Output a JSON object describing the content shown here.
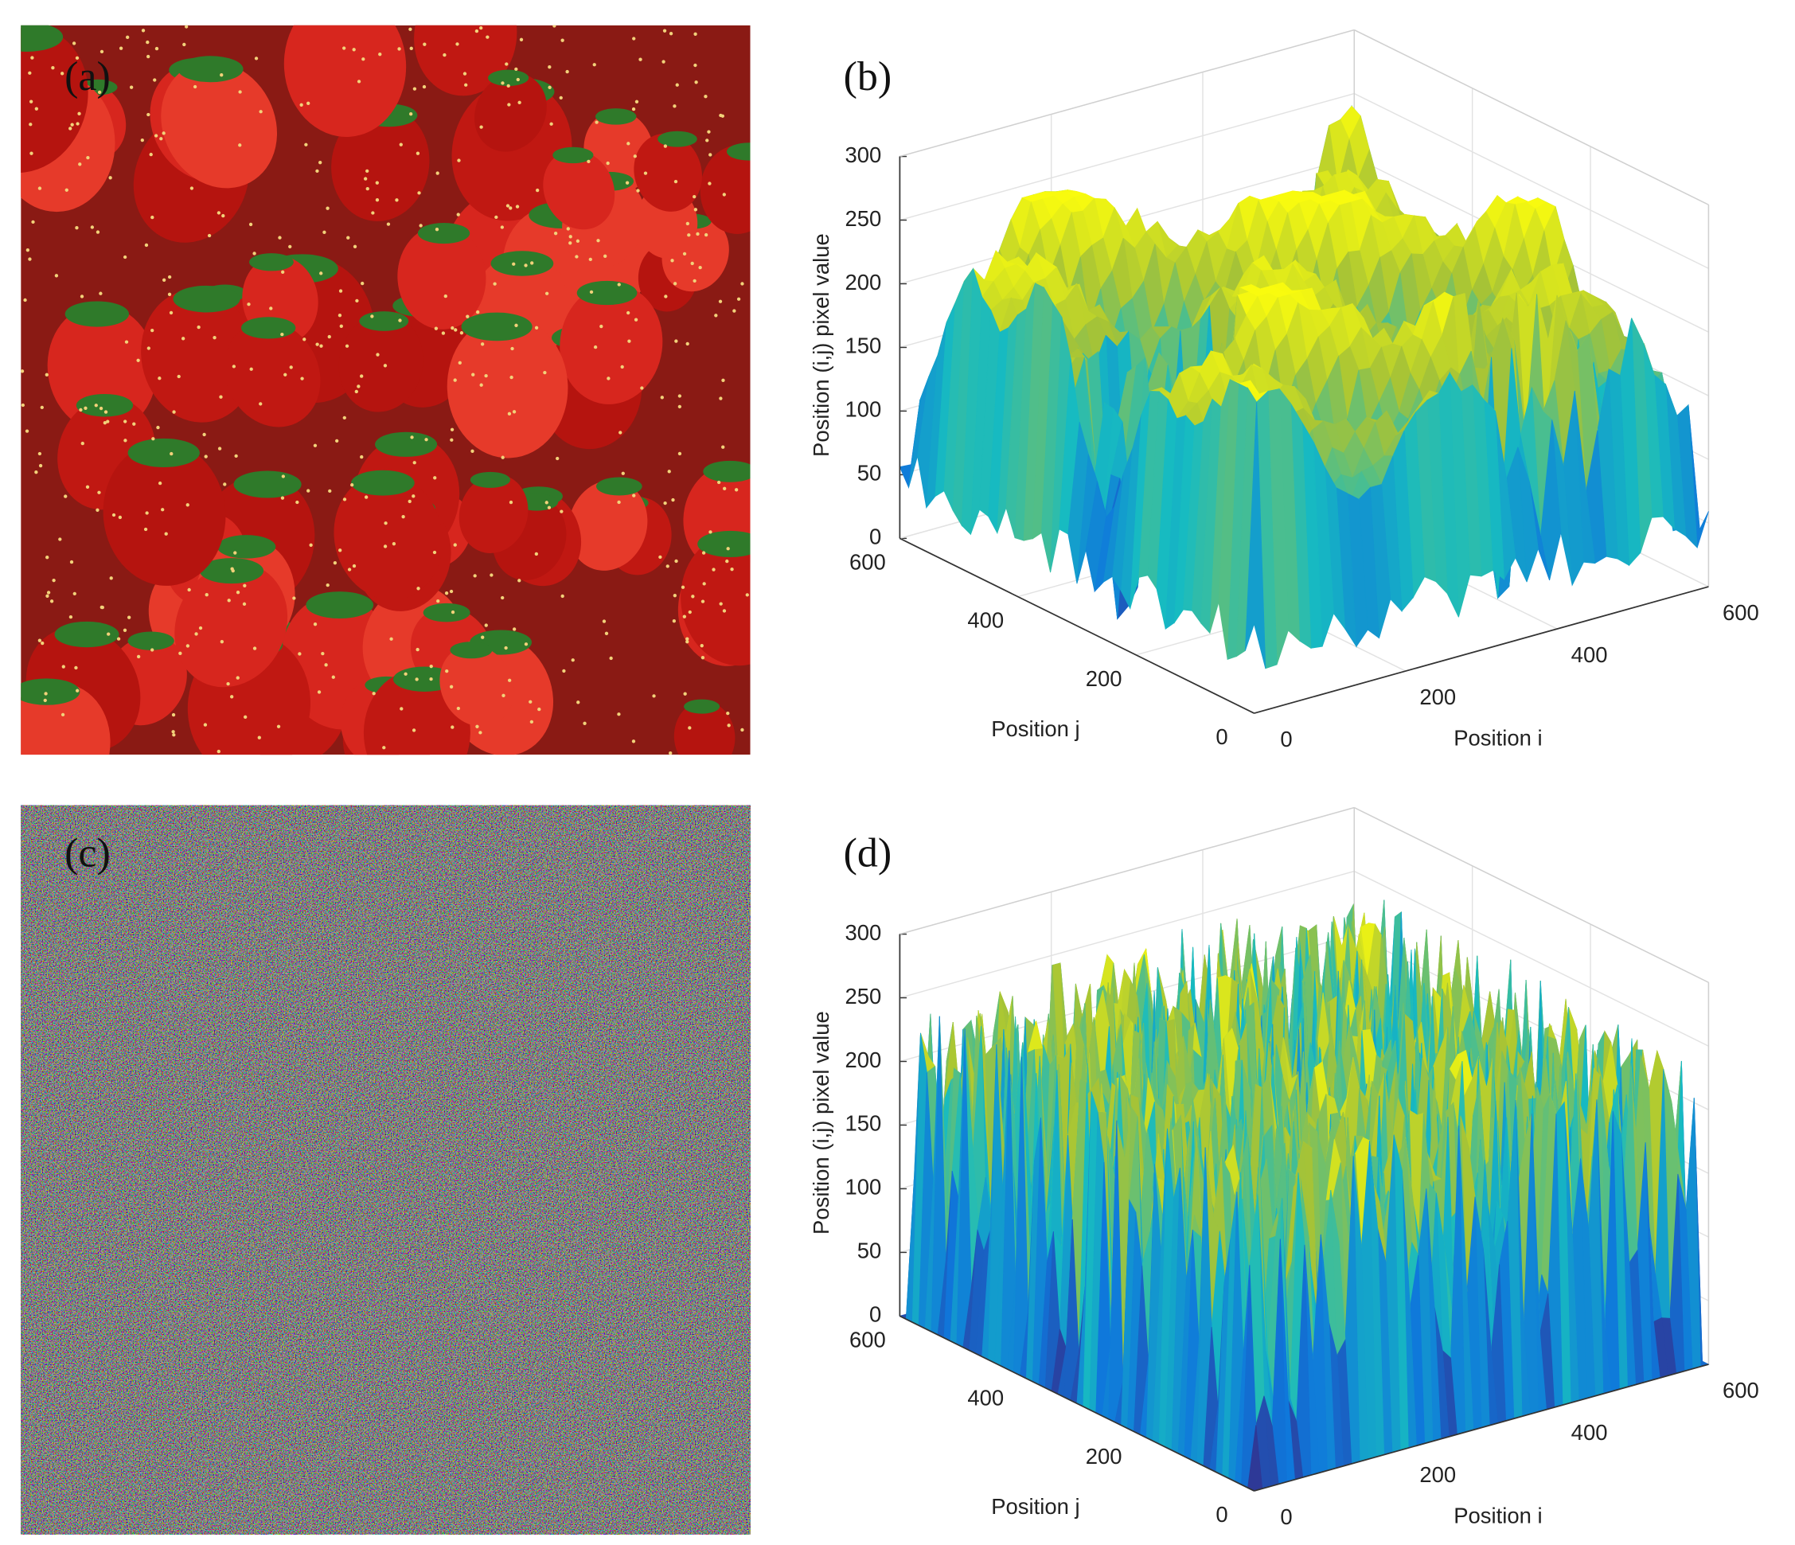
{
  "panels": [
    {
      "label": "(a)"
    },
    {
      "label": "(b)",
      "z_label": "Position (i,j) pixel value",
      "j_label": "Position j",
      "i_label": "Position i",
      "z_ticks": [
        0,
        50,
        100,
        150,
        200,
        250,
        300
      ],
      "j_ticks": [
        0,
        200,
        400,
        600
      ],
      "i_ticks": [
        0,
        200,
        400,
        600
      ]
    },
    {
      "label": "(c)"
    },
    {
      "label": "(d)",
      "z_label": "Position (i,j) pixel value",
      "j_label": "Position j",
      "i_label": "Position i",
      "z_ticks": [
        0,
        50,
        100,
        150,
        200,
        250,
        300
      ],
      "j_ticks": [
        0,
        200,
        400,
        600
      ],
      "i_ticks": [
        0,
        200,
        400,
        600
      ]
    }
  ]
}
